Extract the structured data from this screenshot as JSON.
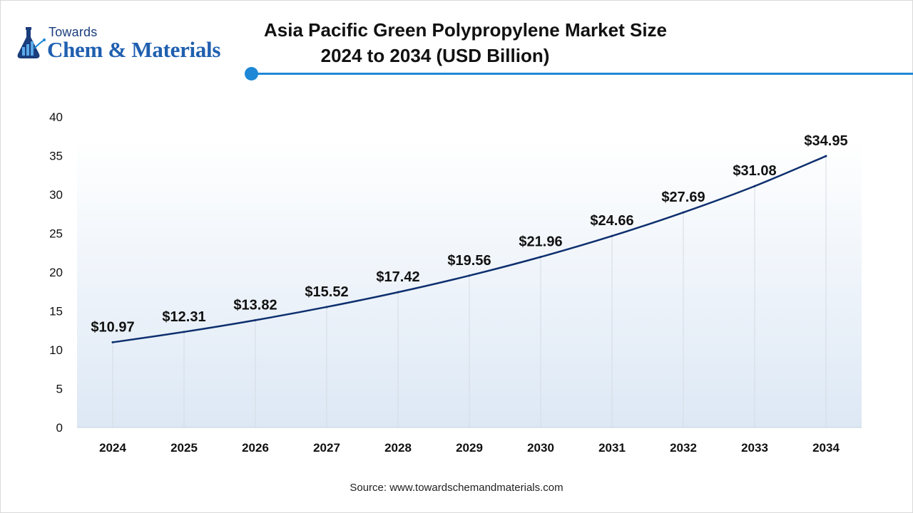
{
  "brand": {
    "top": "Towards",
    "main": "Chem & Materials"
  },
  "title": {
    "line1": "Asia Pacific Green Polypropylene Market Size",
    "line2": "2024 to 2034 (USD Billion)"
  },
  "source": "Source: www.towardschemandmaterials.com",
  "colors": {
    "line": "#0d2f6e",
    "accent": "#1e88d6",
    "area_top": "#ffffff",
    "area_bottom": "#dde8f5"
  },
  "chart_data": {
    "type": "line",
    "title": "Asia Pacific Green Polypropylene Market Size 2024 to 2034 (USD Billion)",
    "xlabel": "",
    "ylabel": "",
    "categories": [
      "2024",
      "2025",
      "2026",
      "2027",
      "2028",
      "2029",
      "2030",
      "2031",
      "2032",
      "2033",
      "2034"
    ],
    "series": [
      {
        "values": [
          10.97,
          12.31,
          13.82,
          15.52,
          17.42,
          19.56,
          21.96,
          24.66,
          27.69,
          31.08,
          34.95
        ],
        "labels": [
          "$10.97",
          "$12.31",
          "$13.82",
          "$15.52",
          "$17.42",
          "$19.56",
          "$21.96",
          "$24.66",
          "$27.69",
          "$31.08",
          "$34.95"
        ]
      }
    ],
    "ylim": [
      0,
      40
    ],
    "yticks": [
      0,
      5,
      10,
      15,
      20,
      25,
      30,
      35,
      40
    ],
    "grid": "vertical",
    "legend": "none"
  }
}
